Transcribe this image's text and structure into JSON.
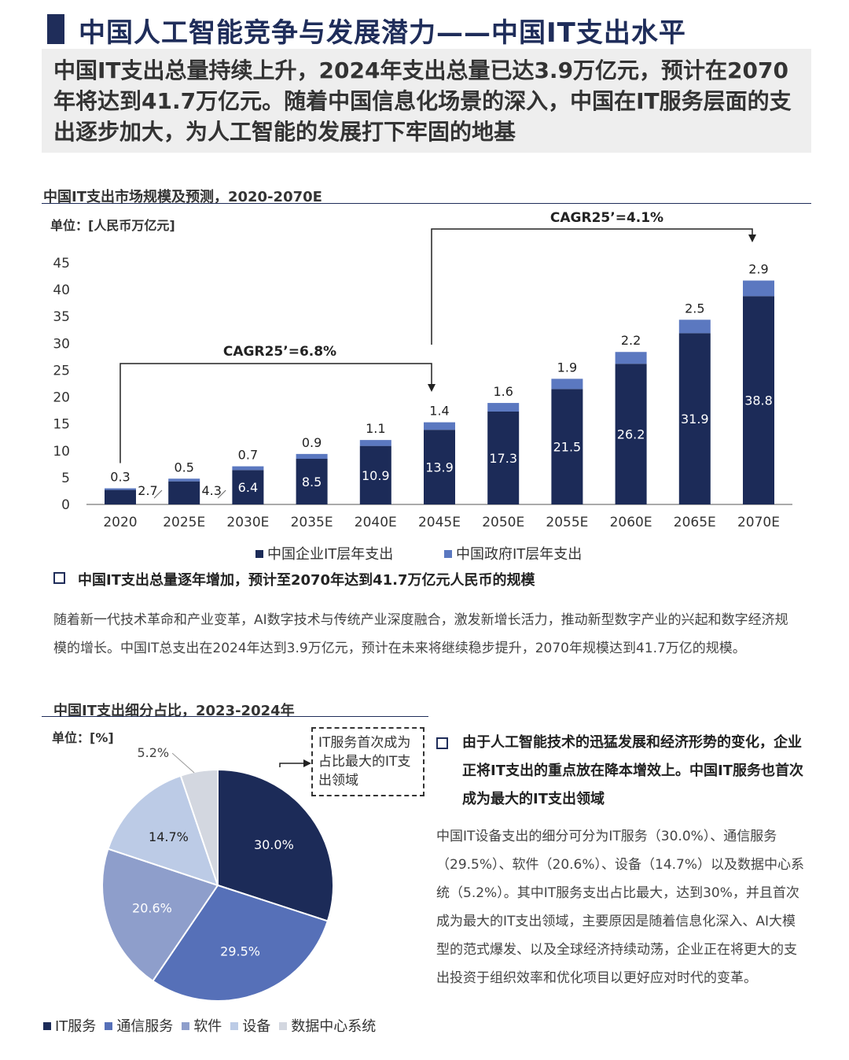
{
  "header": {
    "title": "中国人工智能竞争与发展潜力——中国IT支出水平",
    "summary": "中国IT支出总量持续上升，2024年支出总量已达3.9万亿元，预计在2070年将达到41.7万亿元。随着中国信息化场景的深入，中国在IT服务层面的支出逐步加大，为人工智能的发展打下牢固的地基"
  },
  "colors": {
    "navy": "#1f2d5a",
    "bar_enterprise": "#1c2b58",
    "bar_government": "#5b78c0",
    "pie_it_service": "#1c2b58",
    "pie_telecom": "#5670b8",
    "pie_software": "#8e9ecb",
    "pie_equipment": "#bccbe6",
    "pie_datacenter": "#d3d7e0"
  },
  "section1": {
    "title": "中国IT支出市场规模及预测，2020-2070E",
    "unit": "单位：[人民币万亿元]",
    "bullet": "中国IT支出总量逐年增加，预计至2070年达到41.7万亿元人民币的规模",
    "body": "随着新一代技术革命和产业变革，AI数字技术与传统产业深度融合，激发新增长活力，推动新型数字产业的兴起和数字经济规模的增长。中国IT总支出在2024年达到3.9万亿元，预计在未来将继续稳步提升，2070年规模达到41.7万亿的规模。"
  },
  "section2": {
    "title": "中国IT支出细分占比，2023-2024年",
    "unit": "单位：[%]",
    "callout": "IT服务首次成为占比最大的IT支出领域",
    "bullet": "由于人工智能技术的迅猛发展和经济形势的变化，企业正将IT支出的重点放在降本增效上。中国IT服务也首次成为最大的IT支出领域",
    "body": "中国IT设备支出的细分可分为IT服务（30.0%）、通信服务（29.5%）、软件（20.6%）、设备（14.7%）以及数据中心系统（5.2%）。其中IT服务支出占比最大，达到30%，并且首次成为最大的IT支出领域，主要原因是随着信息化深入、AI大模型的范式爆发、以及全球经济持续动荡，企业正在将更大的支出投资于组织效率和优化项目以更好应对时代的变革。"
  },
  "chart_data": [
    {
      "type": "bar",
      "stacked": true,
      "categories": [
        "2020",
        "2025E",
        "2030E",
        "2035E",
        "2040E",
        "2045E",
        "2050E",
        "2055E",
        "2060E",
        "2065E",
        "2070E"
      ],
      "series": [
        {
          "name": "中国企业IT层年支出",
          "values": [
            2.7,
            4.3,
            6.4,
            8.5,
            10.9,
            13.9,
            17.3,
            21.5,
            26.2,
            31.9,
            38.8
          ]
        },
        {
          "name": "中国政府IT层年支出",
          "values": [
            0.3,
            0.5,
            0.7,
            0.9,
            1.1,
            1.4,
            1.6,
            1.9,
            2.2,
            2.5,
            2.9
          ]
        }
      ],
      "y_ticks": [
        0,
        5,
        10,
        15,
        20,
        25,
        30,
        35,
        40,
        45
      ],
      "ylim": [
        0,
        45
      ],
      "annotations": [
        {
          "text": "CAGR25’=6.8%",
          "from": "2020",
          "to": "2045E"
        },
        {
          "text": "CAGR25’=4.1%",
          "from": "2045E",
          "to": "2070E"
        }
      ],
      "legend_position": "bottom"
    },
    {
      "type": "pie",
      "labels": [
        "IT服务",
        "通信服务",
        "软件",
        "设备",
        "数据中心系统"
      ],
      "values": [
        30.0,
        29.5,
        20.6,
        14.7,
        5.2
      ],
      "value_labels": [
        "30.0%",
        "29.5%",
        "20.6%",
        "14.7%",
        "5.2%"
      ],
      "legend_position": "bottom"
    }
  ]
}
